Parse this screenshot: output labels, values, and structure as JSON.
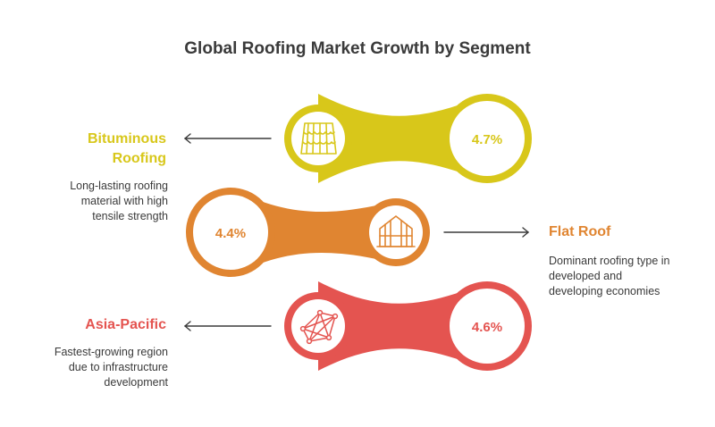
{
  "title": "Global Roofing Market Growth by Segment",
  "colors": {
    "yellow": "#d8c71a",
    "orange": "#e08531",
    "red": "#e45450",
    "title": "#3a3a3a",
    "text": "#3a3a3a"
  },
  "segments": [
    {
      "label_lines": [
        "Bituminous",
        "Roofing"
      ],
      "description_lines": [
        "Long-lasting roofing",
        "material with high",
        "tensile strength"
      ],
      "value": "4.7%",
      "icon": "roof-tiles-icon"
    },
    {
      "label_lines": [
        "Flat Roof"
      ],
      "description_lines": [
        "Dominant roofing type in",
        "developed and",
        "developing economies"
      ],
      "value": "4.4%",
      "icon": "greenhouse-icon"
    },
    {
      "label_lines": [
        "Asia-Pacific"
      ],
      "description_lines": [
        "Fastest-growing region",
        "due to infrastructure",
        "development"
      ],
      "value": "4.6%",
      "icon": "network-icon"
    }
  ]
}
